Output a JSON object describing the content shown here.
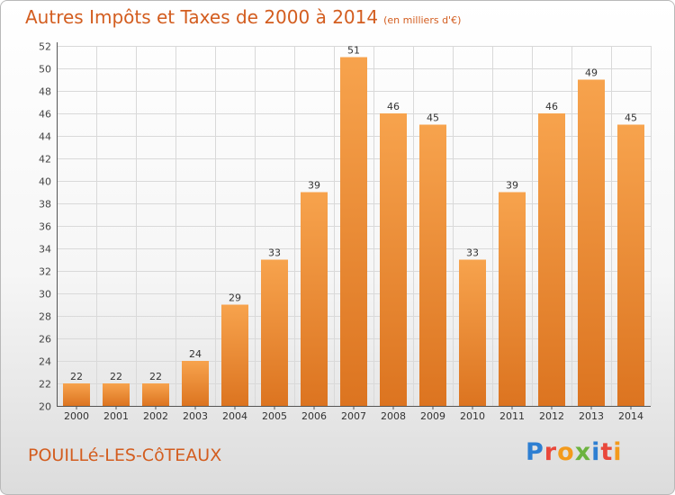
{
  "header": {
    "title": "Autres Impôts et Taxes de 2000 à 2014",
    "subtitle": "(en milliers d'€)"
  },
  "footer": {
    "commune": "POUILLé-LES-CôTEAUX",
    "logo_text": "Proxiti",
    "logo_letters": [
      {
        "ch": "P",
        "color": "#2e7fd2"
      },
      {
        "ch": "r",
        "color": "#e9483b"
      },
      {
        "ch": "o",
        "color": "#f39a1c"
      },
      {
        "ch": "x",
        "color": "#6cb33f"
      },
      {
        "ch": "i",
        "color": "#2e7fd2"
      },
      {
        "ch": "t",
        "color": "#e9483b"
      },
      {
        "ch": "i",
        "color": "#f39a1c"
      }
    ]
  },
  "colors": {
    "bar_light": "#f7a34d",
    "bar_dark": "#dc7420",
    "accent": "#d35d1f",
    "grid": "#d9d9d9",
    "axis": "#555555"
  },
  "chart_data": {
    "type": "bar",
    "categories": [
      "2000",
      "2001",
      "2002",
      "2003",
      "2004",
      "2005",
      "2006",
      "2007",
      "2008",
      "2009",
      "2010",
      "2011",
      "2012",
      "2013",
      "2014"
    ],
    "values": [
      22,
      22,
      22,
      24,
      29,
      33,
      39,
      51,
      46,
      45,
      33,
      39,
      46,
      49,
      45
    ],
    "ylim": [
      20,
      52
    ],
    "yticks": [
      20,
      22,
      24,
      26,
      28,
      30,
      32,
      34,
      36,
      38,
      40,
      42,
      44,
      46,
      48,
      50,
      52
    ],
    "grid": true,
    "data_labels": true
  }
}
